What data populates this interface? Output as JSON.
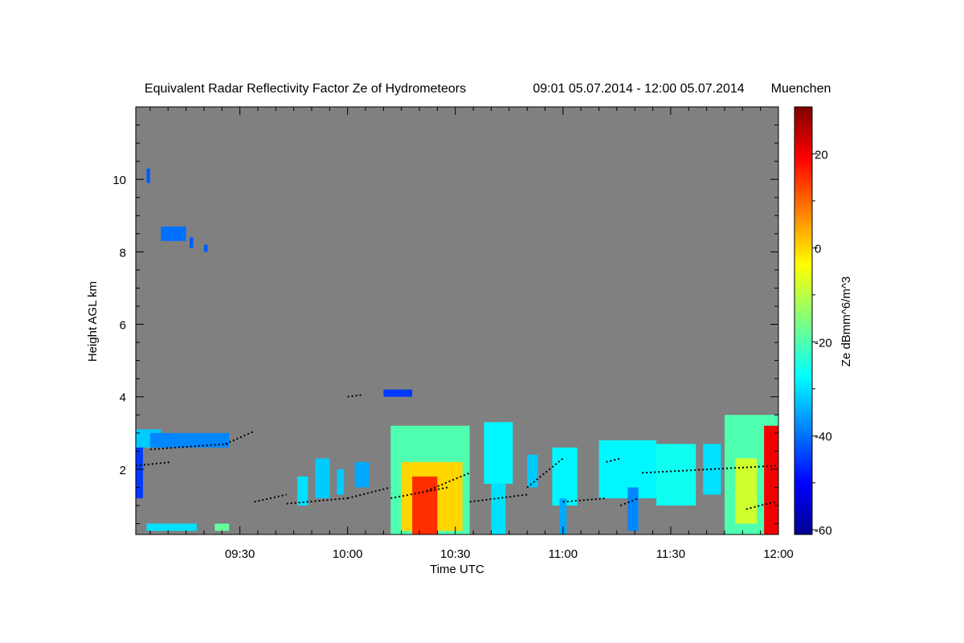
{
  "chart_data": {
    "type": "heatmap",
    "title": "Equivalent Radar Reflectivity Factor Ze of Hydrometeors",
    "time_range": "09:01 05.07.2014 - 12:00 05.07.2014",
    "location": "Muenchen",
    "xlabel": "Time UTC",
    "ylabel": "Height AGL km",
    "colorbar_label": "Ze dBmm^6/m^3",
    "x_tick_labels": [
      "09:30",
      "10:00",
      "10:30",
      "11:00",
      "11:30",
      "12:00"
    ],
    "x_range_min": [
      541,
      720
    ],
    "x_ticks_min": [
      570,
      600,
      630,
      660,
      690,
      720
    ],
    "y_tick_labels": [
      "2",
      "4",
      "6",
      "8",
      "10"
    ],
    "y_ticks": [
      2,
      4,
      6,
      8,
      10
    ],
    "ylim": [
      0.2,
      12
    ],
    "colorbar_tick_labels": [
      "20",
      "0",
      "-20",
      "-40",
      "-60"
    ],
    "colorbar_ticks": [
      20,
      0,
      -20,
      -40,
      -60
    ],
    "colorbar_range": [
      -61,
      30
    ],
    "background_color": "#808080",
    "echo_regions": [
      {
        "t0": 541,
        "t1": 543,
        "h0": 1.2,
        "h1": 2.8,
        "ze": -45
      },
      {
        "t0": 541,
        "t1": 548,
        "h0": 2.6,
        "h1": 3.1,
        "ze": -32
      },
      {
        "t0": 545,
        "t1": 567,
        "h0": 2.6,
        "h1": 3.0,
        "ze": -38
      },
      {
        "t0": 544,
        "t1": 545,
        "h0": 9.9,
        "h1": 10.3,
        "ze": -42
      },
      {
        "t0": 548,
        "t1": 555,
        "h0": 8.3,
        "h1": 8.7,
        "ze": -40
      },
      {
        "t0": 556,
        "t1": 557,
        "h0": 8.1,
        "h1": 8.4,
        "ze": -42
      },
      {
        "t0": 560,
        "t1": 561,
        "h0": 8.0,
        "h1": 8.2,
        "ze": -42
      },
      {
        "t0": 544,
        "t1": 558,
        "h0": 0.3,
        "h1": 0.5,
        "ze": -30
      },
      {
        "t0": 563,
        "t1": 567,
        "h0": 0.3,
        "h1": 0.5,
        "ze": -18
      },
      {
        "t0": 586,
        "t1": 589,
        "h0": 1.0,
        "h1": 1.8,
        "ze": -30
      },
      {
        "t0": 591,
        "t1": 595,
        "h0": 1.2,
        "h1": 2.3,
        "ze": -32
      },
      {
        "t0": 597,
        "t1": 599,
        "h0": 1.3,
        "h1": 2.0,
        "ze": -32
      },
      {
        "t0": 602,
        "t1": 606,
        "h0": 1.5,
        "h1": 2.2,
        "ze": -35
      },
      {
        "t0": 610,
        "t1": 618,
        "h0": 4.0,
        "h1": 4.2,
        "ze": -45
      },
      {
        "t0": 612,
        "t1": 634,
        "h0": 0.2,
        "h1": 3.2,
        "ze": -20
      },
      {
        "t0": 615,
        "t1": 632,
        "h0": 0.3,
        "h1": 2.2,
        "ze": 0
      },
      {
        "t0": 618,
        "t1": 625,
        "h0": 0.2,
        "h1": 1.8,
        "ze": 15
      },
      {
        "t0": 638,
        "t1": 646,
        "h0": 1.6,
        "h1": 3.3,
        "ze": -28
      },
      {
        "t0": 640,
        "t1": 644,
        "h0": 0.2,
        "h1": 1.6,
        "ze": -30
      },
      {
        "t0": 650,
        "t1": 653,
        "h0": 1.5,
        "h1": 2.4,
        "ze": -32
      },
      {
        "t0": 657,
        "t1": 664,
        "h0": 1.0,
        "h1": 2.6,
        "ze": -28
      },
      {
        "t0": 659,
        "t1": 661,
        "h0": 0.2,
        "h1": 1.2,
        "ze": -35
      },
      {
        "t0": 670,
        "t1": 686,
        "h0": 1.2,
        "h1": 2.8,
        "ze": -28
      },
      {
        "t0": 678,
        "t1": 681,
        "h0": 0.3,
        "h1": 1.5,
        "ze": -38
      },
      {
        "t0": 686,
        "t1": 697,
        "h0": 1.0,
        "h1": 2.7,
        "ze": -26
      },
      {
        "t0": 699,
        "t1": 704,
        "h0": 1.3,
        "h1": 2.7,
        "ze": -30
      },
      {
        "t0": 705,
        "t1": 720,
        "h0": 0.2,
        "h1": 3.5,
        "ze": -20
      },
      {
        "t0": 708,
        "t1": 714,
        "h0": 0.5,
        "h1": 2.3,
        "ze": -8
      },
      {
        "t0": 716,
        "t1": 720,
        "h0": 0.2,
        "h1": 3.2,
        "ze": 20
      }
    ],
    "cloud_base_series": [
      {
        "t0": 541,
        "t1": 551,
        "h0": 2.1,
        "h1": 2.2
      },
      {
        "t0": 545,
        "t1": 567,
        "h0": 2.55,
        "h1": 2.7
      },
      {
        "t0": 566,
        "t1": 574,
        "h0": 2.7,
        "h1": 3.05
      },
      {
        "t0": 574,
        "t1": 583,
        "h0": 1.1,
        "h1": 1.3
      },
      {
        "t0": 583,
        "t1": 600,
        "h0": 1.05,
        "h1": 1.2
      },
      {
        "t0": 600,
        "t1": 612,
        "h0": 1.2,
        "h1": 1.5
      },
      {
        "t0": 600,
        "t1": 604,
        "h0": 4.0,
        "h1": 4.05
      },
      {
        "t0": 612,
        "t1": 628,
        "h0": 1.2,
        "h1": 1.5
      },
      {
        "t0": 622,
        "t1": 634,
        "h0": 1.4,
        "h1": 1.9
      },
      {
        "t0": 634,
        "t1": 650,
        "h0": 1.1,
        "h1": 1.3
      },
      {
        "t0": 650,
        "t1": 660,
        "h0": 1.5,
        "h1": 2.3
      },
      {
        "t0": 660,
        "t1": 672,
        "h0": 1.1,
        "h1": 1.2
      },
      {
        "t0": 672,
        "t1": 676,
        "h0": 2.2,
        "h1": 2.3
      },
      {
        "t0": 676,
        "t1": 681,
        "h0": 1.0,
        "h1": 1.2
      },
      {
        "t0": 682,
        "t1": 720,
        "h0": 1.9,
        "h1": 2.1
      },
      {
        "t0": 711,
        "t1": 719,
        "h0": 0.9,
        "h1": 1.1
      }
    ]
  }
}
